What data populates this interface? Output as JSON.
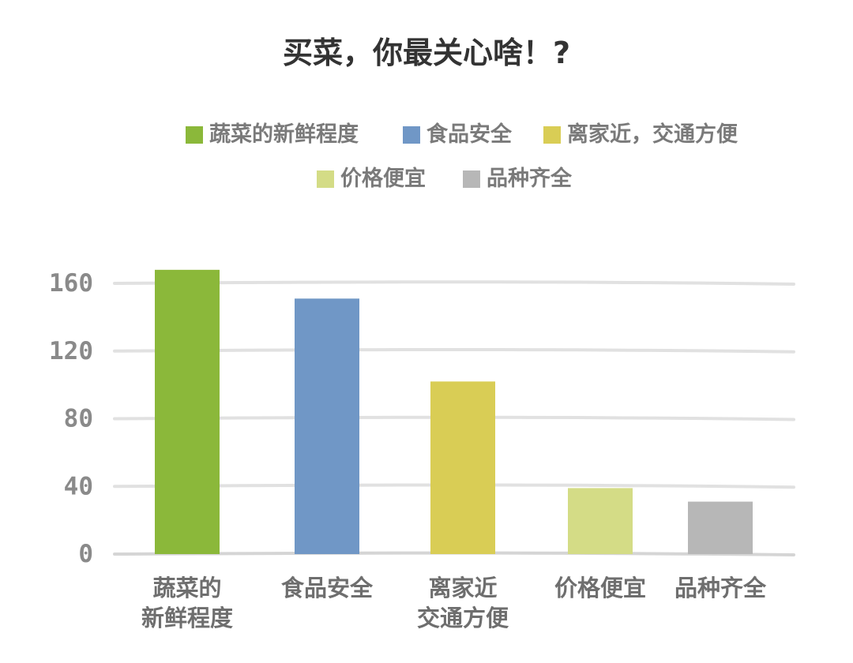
{
  "chart_data": {
    "type": "bar",
    "title": "买菜，你最关心啥！?",
    "categories": [
      "蔬菜的新鲜程度",
      "食品安全",
      "离家近，交通方便",
      "价格便宜",
      "品种齐全"
    ],
    "category_tick_lines": [
      [
        "蔬菜的",
        "新鲜程度"
      ],
      [
        "食品安全"
      ],
      [
        "离家近",
        "交通方便"
      ],
      [
        "价格便宜"
      ],
      [
        "品种齐全"
      ]
    ],
    "values": [
      168,
      151,
      102,
      39,
      31
    ],
    "ylim": [
      0,
      160
    ],
    "yticks": [
      "0",
      "40",
      "80",
      "120",
      "160"
    ],
    "grid": true,
    "legend_position": "top",
    "legend": [
      {
        "label": "蔬菜的新鲜程度",
        "color": "#8BB83A"
      },
      {
        "label": "食品安全",
        "color": "#7097C6"
      },
      {
        "label": "离家近，交通方便",
        "color": "#D9CD55"
      },
      {
        "label": "价格便宜",
        "color": "#D4DC86"
      },
      {
        "label": "品种齐全",
        "color": "#B7B7B7"
      }
    ],
    "colors": [
      "#8BB83A",
      "#7097C6",
      "#D9CD55",
      "#D4DC86",
      "#B7B7B7"
    ]
  }
}
